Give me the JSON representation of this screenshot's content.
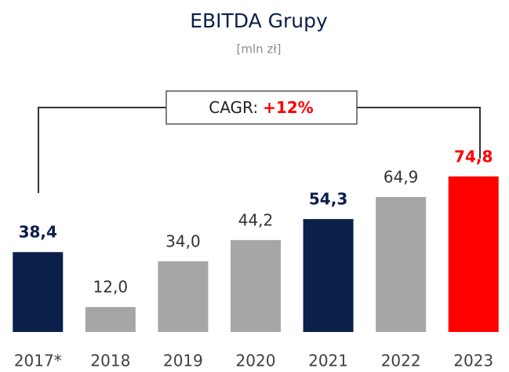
{
  "chart_data": {
    "type": "bar",
    "title": "EBITDA Grupy",
    "subtitle": "[mln zł]",
    "categories": [
      "2017*",
      "2018",
      "2019",
      "2020",
      "2021",
      "2022",
      "2023"
    ],
    "values": [
      38.4,
      12.0,
      34.0,
      44.2,
      54.3,
      64.9,
      74.8
    ],
    "value_labels": [
      "38,4",
      "12,0",
      "34,0",
      "44,2",
      "54,3",
      "64,9",
      "74,8"
    ],
    "colors": [
      "#0b1f4b",
      "#a6a6a6",
      "#a6a6a6",
      "#a6a6a6",
      "#0b1f4b",
      "#a6a6a6",
      "#ff0000"
    ],
    "label_bold": [
      true,
      false,
      false,
      false,
      true,
      false,
      true
    ],
    "annotation": {
      "label": "CAGR:",
      "value": "+12%"
    }
  }
}
